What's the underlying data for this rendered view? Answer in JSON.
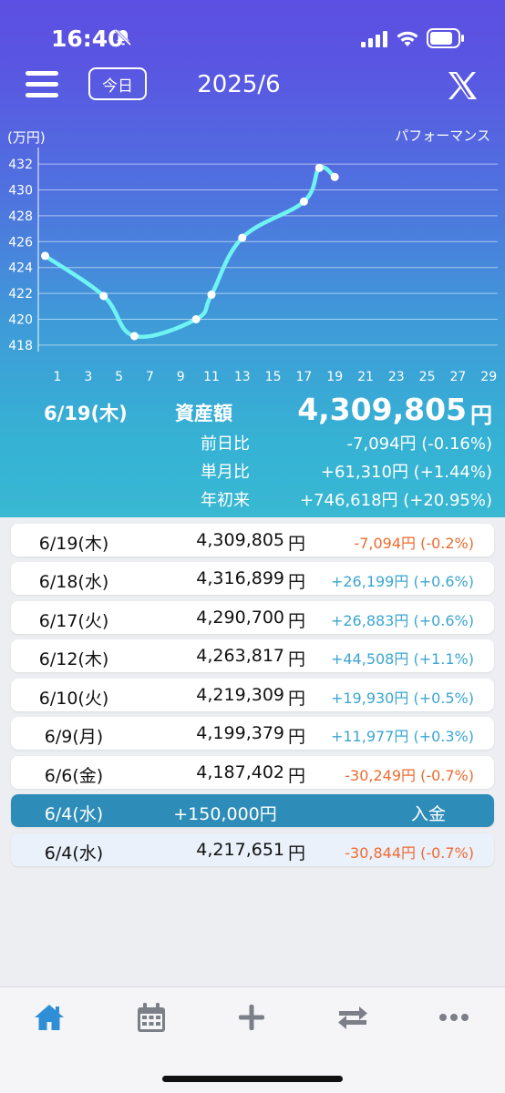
{
  "status": {
    "time": "16:40"
  },
  "header": {
    "today_label": "今日",
    "month": "2025/6"
  },
  "chart": {
    "unit_label": "(万円)",
    "performance_label": "パフォーマンス",
    "line_color": "#6ff4f2"
  },
  "chart_data": {
    "type": "line",
    "title": "",
    "xlabel": "",
    "ylabel": "(万円)",
    "xlim": [
      1,
      29
    ],
    "ylim": [
      417.5,
      432.5
    ],
    "x_ticks": [
      "1",
      "3",
      "5",
      "7",
      "9",
      "11",
      "13",
      "15",
      "17",
      "19",
      "21",
      "23",
      "25",
      "27",
      "29"
    ],
    "y_ticks": [
      "418",
      "420",
      "422",
      "424",
      "426",
      "428",
      "430",
      "432"
    ],
    "grid": true,
    "series": [
      {
        "x": [
          0.2,
          4,
          6,
          10,
          11,
          13,
          17,
          18,
          19
        ],
        "values": [
          424.9,
          421.8,
          418.7,
          420.0,
          421.9,
          426.3,
          429.1,
          431.7,
          431.0
        ],
        "markers": [
          true,
          true,
          true,
          true,
          true,
          true,
          true,
          true,
          true
        ]
      }
    ]
  },
  "summary": {
    "date": "6/19(木)",
    "asset_label": "資産額",
    "asset_value": "4,309,805",
    "yen": "円",
    "rows": [
      {
        "label": "前日比",
        "value": "-7,094円 (-0.16%)"
      },
      {
        "label": "単月比",
        "value": "+61,310円 (+1.44%)"
      },
      {
        "label": "年初来",
        "value": "+746,618円 (+20.95%)"
      }
    ]
  },
  "colors": {
    "positive": "#3ba6d2",
    "negative": "#ee6a2f"
  },
  "entries": [
    {
      "date": "6/19(木)",
      "amount": "4,309,805",
      "yen": "円",
      "change": "-7,094円 (-0.2%)",
      "sign": "neg"
    },
    {
      "date": "6/18(水)",
      "amount": "4,316,899",
      "yen": "円",
      "change": "+26,199円 (+0.6%)",
      "sign": "pos"
    },
    {
      "date": "6/17(火)",
      "amount": "4,290,700",
      "yen": "円",
      "change": "+26,883円 (+0.6%)",
      "sign": "pos"
    },
    {
      "date": "6/12(木)",
      "amount": "4,263,817",
      "yen": "円",
      "change": "+44,508円 (+1.1%)",
      "sign": "pos"
    },
    {
      "date": "6/10(火)",
      "amount": "4,219,309",
      "yen": "円",
      "change": "+19,930円 (+0.5%)",
      "sign": "pos"
    },
    {
      "date": "6/9(月)",
      "amount": "4,199,379",
      "yen": "円",
      "change": "+11,977円 (+0.3%)",
      "sign": "pos"
    },
    {
      "date": "6/6(金)",
      "amount": "4,187,402",
      "yen": "円",
      "change": "-30,249円 (-0.7%)",
      "sign": "neg"
    }
  ],
  "deposit": {
    "date": "6/4(水)",
    "amount": "+150,000円",
    "tag": "入金"
  },
  "last_entry": {
    "date": "6/4(水)",
    "amount": "4,217,651",
    "yen": "円",
    "change": "-30,844円 (-0.7%)",
    "sign": "neg"
  },
  "tabbar": {
    "items": [
      {
        "icon": "home-icon",
        "active_color": "#2f8fd6"
      },
      {
        "icon": "calendar-icon"
      },
      {
        "icon": "plus-icon"
      },
      {
        "icon": "transfer-icon"
      },
      {
        "icon": "more-icon"
      }
    ]
  }
}
